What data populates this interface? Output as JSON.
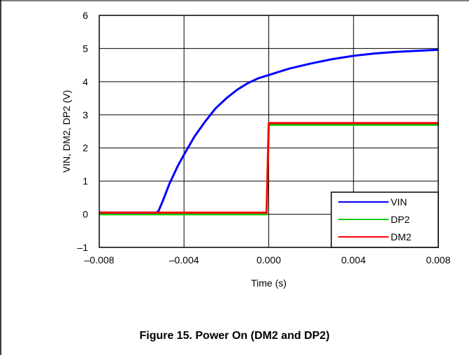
{
  "caption": "Figure 15. Power On (DM2 and DP2)",
  "chart_data": {
    "type": "line",
    "title": "",
    "xlabel": "Time (s)",
    "ylabel": "VIN, DM2, DP2 (V)",
    "xlim": [
      -0.008,
      0.008
    ],
    "ylim": [
      -1,
      6
    ],
    "x_ticks": [
      -0.008,
      -0.004,
      0.0,
      0.004,
      0.008
    ],
    "x_tick_labels": [
      "–0.008",
      "–0.004",
      "0.000",
      "0.004",
      "0.008"
    ],
    "y_ticks": [
      -1,
      0,
      1,
      2,
      3,
      4,
      5,
      6
    ],
    "y_tick_labels": [
      "–1",
      "0",
      "1",
      "2",
      "3",
      "4",
      "5",
      "6"
    ],
    "grid": true,
    "legend_position": "bottom-right",
    "series": [
      {
        "name": "VIN",
        "color": "#0000ff",
        "x": [
          -0.008,
          -0.0053,
          -0.0052,
          -0.005,
          -0.0047,
          -0.0043,
          -0.004,
          -0.0035,
          -0.003,
          -0.0025,
          -0.002,
          -0.0015,
          -0.001,
          -0.0005,
          0.0,
          0.0005,
          0.001,
          0.002,
          0.003,
          0.004,
          0.005,
          0.006,
          0.007,
          0.008
        ],
        "y": [
          0.05,
          0.05,
          0.1,
          0.4,
          0.9,
          1.45,
          1.8,
          2.35,
          2.8,
          3.2,
          3.5,
          3.75,
          3.95,
          4.1,
          4.2,
          4.3,
          4.4,
          4.55,
          4.68,
          4.78,
          4.85,
          4.9,
          4.93,
          4.96
        ]
      },
      {
        "name": "DP2",
        "color": "#00cc00",
        "x": [
          -0.008,
          -0.0001,
          0.0,
          0.008
        ],
        "y": [
          0.0,
          0.0,
          2.7,
          2.7
        ]
      },
      {
        "name": "DM2",
        "color": "#ff0000",
        "x": [
          -0.008,
          -0.0001,
          0.0,
          0.008
        ],
        "y": [
          0.05,
          0.05,
          2.75,
          2.75
        ]
      }
    ]
  }
}
